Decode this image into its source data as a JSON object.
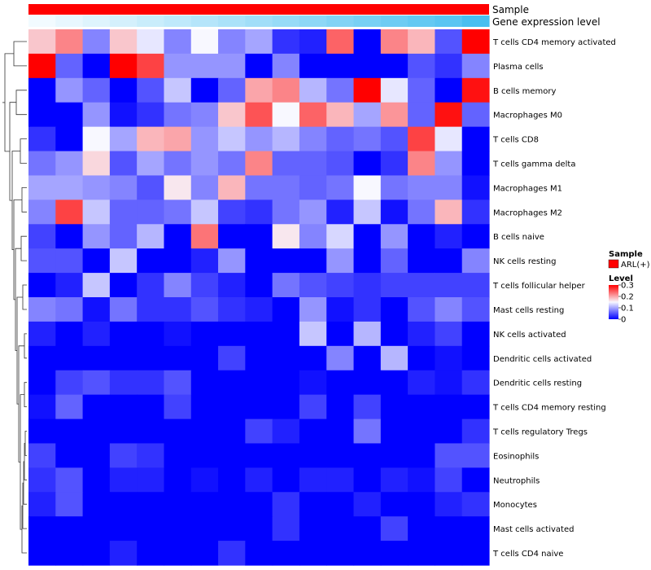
{
  "chart_data": {
    "type": "heatmap",
    "annotation_tracks": [
      "Sample",
      "Gene expression level"
    ],
    "expression_level": [
      0.0,
      0.06,
      0.12,
      0.18,
      0.24,
      0.3,
      0.36,
      0.42,
      0.48,
      0.54,
      0.6,
      0.66,
      0.72,
      0.78,
      0.84,
      0.9,
      1.0
    ],
    "rows": [
      "T cells CD4 memory activated",
      "Plasma cells",
      "B cells memory",
      "Macrophages M0",
      "T cells CD8",
      "T cells gamma delta",
      "Macrophages M1",
      "Macrophages M2",
      "B cells naive",
      "NK cells resting",
      "T cells follicular helper",
      "Mast cells resting",
      "NK cells activated",
      "Dendritic cells activated",
      "Dendritic cells resting",
      "T cells CD4 memory resting",
      "T cells regulatory  Tregs",
      "Eosinophils",
      "Neutrophils",
      "Monocytes",
      "Mast cells activated",
      "T cells CD4 naive"
    ],
    "values": [
      [
        0.18,
        0.22,
        0.08,
        0.18,
        0.14,
        0.08,
        0.15,
        0.08,
        0.1,
        0.03,
        0.02,
        0.24,
        0.0,
        0.22,
        0.19,
        0.05,
        0.3
      ],
      [
        0.3,
        0.06,
        0.0,
        0.3,
        0.26,
        0.09,
        0.09,
        0.09,
        0.0,
        0.08,
        0.0,
        0.0,
        0.0,
        0.0,
        0.05,
        0.03,
        0.08
      ],
      [
        0.0,
        0.09,
        0.06,
        0.0,
        0.05,
        0.12,
        0.0,
        0.06,
        0.2,
        0.22,
        0.11,
        0.07,
        0.3,
        0.14,
        0.06,
        0.0,
        0.29
      ],
      [
        0.0,
        0.0,
        0.09,
        0.01,
        0.03,
        0.07,
        0.08,
        0.18,
        0.25,
        0.15,
        0.24,
        0.19,
        0.1,
        0.21,
        0.06,
        0.29,
        0.06
      ],
      [
        0.03,
        0.0,
        0.15,
        0.1,
        0.19,
        0.2,
        0.09,
        0.12,
        0.09,
        0.11,
        0.08,
        0.06,
        0.07,
        0.05,
        0.26,
        0.14,
        0.0
      ],
      [
        0.07,
        0.09,
        0.17,
        0.05,
        0.1,
        0.07,
        0.09,
        0.07,
        0.22,
        0.06,
        0.06,
        0.05,
        0.0,
        0.03,
        0.22,
        0.09,
        0.0
      ],
      [
        0.1,
        0.1,
        0.09,
        0.08,
        0.05,
        0.16,
        0.08,
        0.19,
        0.07,
        0.07,
        0.06,
        0.07,
        0.15,
        0.07,
        0.08,
        0.08,
        0.01
      ],
      [
        0.08,
        0.26,
        0.12,
        0.06,
        0.06,
        0.07,
        0.12,
        0.04,
        0.03,
        0.07,
        0.09,
        0.02,
        0.12,
        0.01,
        0.07,
        0.19,
        0.03
      ],
      [
        0.04,
        0.0,
        0.09,
        0.06,
        0.11,
        0.0,
        0.23,
        0.0,
        0.0,
        0.16,
        0.08,
        0.13,
        0.0,
        0.09,
        0.0,
        0.02,
        0.0
      ],
      [
        0.05,
        0.05,
        0.0,
        0.12,
        0.0,
        0.0,
        0.02,
        0.09,
        0.0,
        0.0,
        0.0,
        0.09,
        0.0,
        0.06,
        0.0,
        0.0,
        0.08
      ],
      [
        0.0,
        0.02,
        0.12,
        0.0,
        0.03,
        0.08,
        0.04,
        0.02,
        0.0,
        0.07,
        0.05,
        0.04,
        0.03,
        0.04,
        0.04,
        0.04,
        0.04
      ],
      [
        0.08,
        0.07,
        0.01,
        0.07,
        0.03,
        0.03,
        0.05,
        0.03,
        0.02,
        0.0,
        0.09,
        0.01,
        0.03,
        0.0,
        0.05,
        0.08,
        0.05
      ],
      [
        0.02,
        0.0,
        0.02,
        0.0,
        0.0,
        0.01,
        0.0,
        0.0,
        0.0,
        0.0,
        0.12,
        0.0,
        0.11,
        0.0,
        0.02,
        0.04,
        0.0
      ],
      [
        0.0,
        0.0,
        0.0,
        0.0,
        0.0,
        0.0,
        0.0,
        0.04,
        0.0,
        0.0,
        0.0,
        0.08,
        0.0,
        0.11,
        0.0,
        0.01,
        0.0
      ],
      [
        0.0,
        0.04,
        0.05,
        0.03,
        0.03,
        0.05,
        0.0,
        0.0,
        0.0,
        0.0,
        0.01,
        0.0,
        0.0,
        0.0,
        0.02,
        0.01,
        0.03
      ],
      [
        0.01,
        0.06,
        0.0,
        0.0,
        0.0,
        0.04,
        0.0,
        0.0,
        0.0,
        0.0,
        0.04,
        0.0,
        0.04,
        0.0,
        0.0,
        0.0,
        0.0
      ],
      [
        0.0,
        0.0,
        0.0,
        0.0,
        0.0,
        0.0,
        0.0,
        0.0,
        0.04,
        0.02,
        0.0,
        0.0,
        0.07,
        0.0,
        0.0,
        0.0,
        0.03
      ],
      [
        0.04,
        0.0,
        0.0,
        0.04,
        0.03,
        0.0,
        0.0,
        0.0,
        0.0,
        0.0,
        0.0,
        0.0,
        0.0,
        0.0,
        0.0,
        0.05,
        0.05
      ],
      [
        0.03,
        0.05,
        0.0,
        0.02,
        0.02,
        0.0,
        0.01,
        0.0,
        0.02,
        0.0,
        0.02,
        0.02,
        0.0,
        0.02,
        0.01,
        0.04,
        0.0
      ],
      [
        0.02,
        0.05,
        0.0,
        0.0,
        0.0,
        0.0,
        0.0,
        0.0,
        0.0,
        0.03,
        0.0,
        0.0,
        0.02,
        0.0,
        0.0,
        0.02,
        0.03
      ],
      [
        0.0,
        0.0,
        0.0,
        0.0,
        0.0,
        0.0,
        0.0,
        0.0,
        0.0,
        0.03,
        0.0,
        0.0,
        0.0,
        0.04,
        0.0,
        0.0,
        0.0
      ],
      [
        0.0,
        0.0,
        0.0,
        0.02,
        0.0,
        0.0,
        0.0,
        0.03,
        0.0,
        0.0,
        0.0,
        0.0,
        0.0,
        0.0,
        0.0,
        0.0,
        0.0
      ]
    ],
    "color_scale": {
      "min": 0,
      "mid": 0.15,
      "max": 0.3,
      "low_color": "#0000ff",
      "mid_color": "#f8f8ff",
      "high_color": "#ff0000"
    },
    "annotation_colors": {
      "sample": "#ff0000",
      "expr_low": "#f2fbff",
      "expr_high": "#49bff0"
    },
    "legend": {
      "sample_title": "Sample",
      "sample_entry": "ARL(+)",
      "level_title": "Level",
      "level_ticks": [
        {
          "value": 0.3,
          "label": "0.3"
        },
        {
          "value": 0.2,
          "label": "0.2"
        },
        {
          "value": 0.1,
          "label": "0.1"
        },
        {
          "value": 0,
          "label": "0"
        }
      ]
    }
  }
}
